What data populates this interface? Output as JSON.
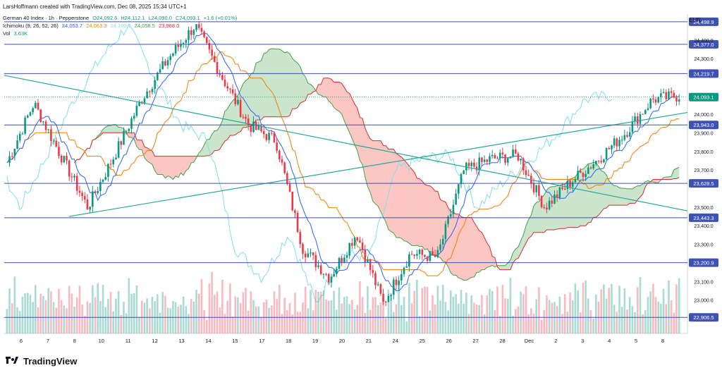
{
  "creator_line": "LarsHoffmann created with TradingView.com, Dec 08, 2025 15:34 UTC+1",
  "currency": "EUR",
  "footer_brand": "TradingView",
  "legend": {
    "symbol": "German 40 Index · 1h · Pepperstone",
    "open": "O24,092.6",
    "high": "H24,112.1",
    "low": "L24,090.0",
    "close": "C24,093.1",
    "change": "+1.6 (+0.01%)",
    "ichimoku_label": "Ichimoku (9, 26, 52, 26)",
    "ichimoku_values": [
      {
        "text": "24,053.7",
        "color": "#2962ff"
      },
      {
        "text": "24,063.3",
        "color": "#f57c00"
      },
      {
        "text": "24,100.7",
        "color": "#80deea"
      },
      {
        "text": "24,058.5",
        "color": "#43a047"
      },
      {
        "text": "23,968.0",
        "color": "#d32f2f"
      }
    ],
    "vol_label": "Vol",
    "vol_value": "3.63K"
  },
  "colors": {
    "up": "#089981",
    "down": "#f23645",
    "tenkan": "#2962ff",
    "kijun": "#f57c00",
    "chikou": "#80deea",
    "span_a": "#43a047",
    "span_b": "#d32f2f",
    "trendline": "#26a69a",
    "hline": "#3f51b5"
  },
  "chart_data": {
    "type": "candlestick",
    "ylim": [
      22820,
      24540
    ],
    "y_ticks": [
      "23,000.0",
      "23,100.0",
      "23,300.0",
      "23,400.0",
      "23,500.0",
      "23,700.0",
      "23,800.0",
      "23,900.0",
      "24,000.0",
      "24,300.0",
      "24,400.0"
    ],
    "x_ticks": [
      "6",
      "7",
      "8",
      "10",
      "11",
      "12",
      "13",
      "14",
      "15",
      "17",
      "18",
      "19",
      "20",
      "21",
      "24",
      "25",
      "26",
      "27",
      "28",
      "Dec",
      "2",
      "3",
      "4",
      "5",
      "8"
    ],
    "horizontal_levels": [
      "24,498.9",
      "24,377.0",
      "24,219.7",
      "23,943.0",
      "23,628.5",
      "23,443.3",
      "23,200.9",
      "22,906.5"
    ],
    "current_price": "24,093.1",
    "price_path": [
      {
        "x": 0,
        "y": 23740
      },
      {
        "x": 1,
        "y": 24060
      },
      {
        "x": 2,
        "y": 23780
      },
      {
        "x": 3,
        "y": 23500
      },
      {
        "x": 4,
        "y": 23780
      },
      {
        "x": 5,
        "y": 24080
      },
      {
        "x": 6,
        "y": 24300
      },
      {
        "x": 7,
        "y": 24480
      },
      {
        "x": 8,
        "y": 24200
      },
      {
        "x": 9,
        "y": 23940
      },
      {
        "x": 10,
        "y": 23860
      },
      {
        "x": 11,
        "y": 23280
      },
      {
        "x": 12,
        "y": 23120
      },
      {
        "x": 13,
        "y": 23360
      },
      {
        "x": 14,
        "y": 22980
      },
      {
        "x": 15,
        "y": 23250
      },
      {
        "x": 16,
        "y": 23230
      },
      {
        "x": 17,
        "y": 23700
      },
      {
        "x": 18,
        "y": 23760
      },
      {
        "x": 19,
        "y": 23780
      },
      {
        "x": 20,
        "y": 23500
      },
      {
        "x": 21,
        "y": 23640
      },
      {
        "x": 22,
        "y": 23760
      },
      {
        "x": 23,
        "y": 23900
      },
      {
        "x": 24,
        "y": 24080
      },
      {
        "x": 25,
        "y": 24100
      }
    ],
    "volume": [
      0.55,
      0.7,
      0.4,
      0.85,
      0.5,
      0.35,
      0.75,
      0.95,
      0.45,
      0.6,
      0.3,
      0.8,
      0.5,
      0.65,
      0.9,
      0.4,
      0.55,
      0.7,
      0.6,
      0.45,
      0.8,
      0.5,
      0.65,
      0.4,
      0.7,
      0.55,
      0.35,
      0.6,
      0.85,
      0.5,
      0.4,
      0.75,
      0.55,
      0.65,
      0.45,
      0.7
    ]
  }
}
